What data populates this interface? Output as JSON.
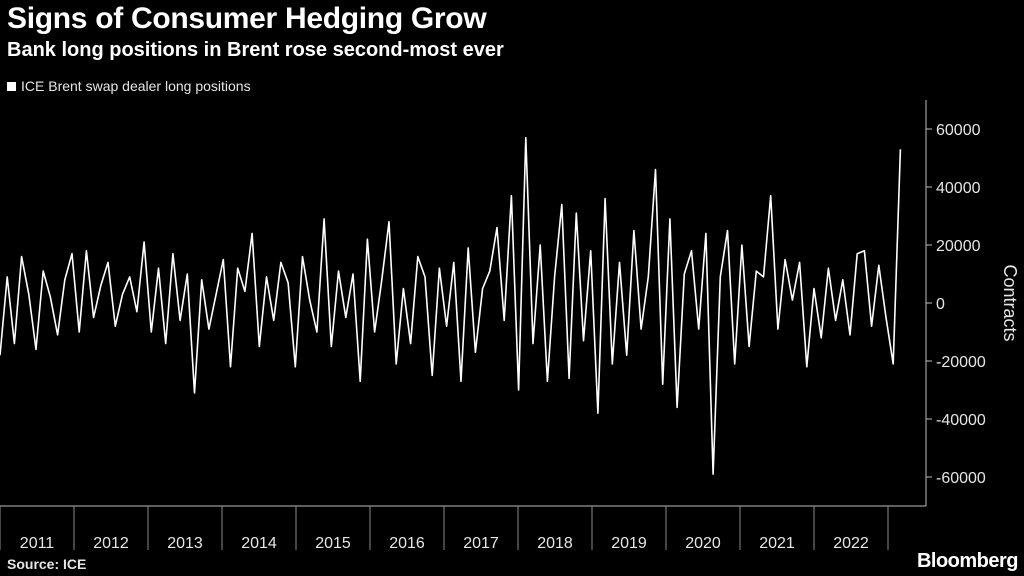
{
  "header": {
    "title": "Signs of Consumer Hedging Grow",
    "subtitle": "Bank long positions in Brent rose second-most ever"
  },
  "footer": {
    "source": "Source: ICE",
    "brand": "Bloomberg"
  },
  "chart_data": {
    "type": "line",
    "legend_position": "top-left",
    "grid": false,
    "ylabel": "Contracts",
    "ylim": [
      -70000,
      70000
    ],
    "yticks": [
      60000,
      40000,
      20000,
      0,
      -20000,
      -40000,
      -60000
    ],
    "ytick_labels": [
      "60000",
      "40000",
      "20000",
      "0",
      "-20000",
      "-40000",
      "-60000"
    ],
    "xlim": [
      2010.9,
      2023.45
    ],
    "x_categories": [
      "2011",
      "2012",
      "2013",
      "2014",
      "2015",
      "2016",
      "2017",
      "2018",
      "2019",
      "2020",
      "2021",
      "2022"
    ],
    "series": [
      {
        "name": "ICE Brent swap dealer long positions",
        "color": "#ffffff",
        "x": [
          2010.9,
          2011.0,
          2011.1,
          2011.2,
          2011.3,
          2011.4,
          2011.5,
          2011.6,
          2011.7,
          2011.8,
          2011.9,
          2012.0,
          2012.1,
          2012.2,
          2012.3,
          2012.4,
          2012.5,
          2012.6,
          2012.7,
          2012.8,
          2012.9,
          2013.0,
          2013.1,
          2013.2,
          2013.3,
          2013.4,
          2013.5,
          2013.6,
          2013.7,
          2013.8,
          2013.9,
          2014.0,
          2014.1,
          2014.2,
          2014.3,
          2014.4,
          2014.5,
          2014.6,
          2014.7,
          2014.8,
          2014.9,
          2015.0,
          2015.1,
          2015.2,
          2015.3,
          2015.4,
          2015.5,
          2015.6,
          2015.7,
          2015.8,
          2015.9,
          2016.0,
          2016.1,
          2016.2,
          2016.3,
          2016.4,
          2016.5,
          2016.6,
          2016.7,
          2016.8,
          2016.9,
          2017.0,
          2017.1,
          2017.2,
          2017.3,
          2017.4,
          2017.5,
          2017.6,
          2017.7,
          2017.8,
          2017.9,
          2018.0,
          2018.1,
          2018.2,
          2018.3,
          2018.4,
          2018.5,
          2018.6,
          2018.7,
          2018.8,
          2018.9,
          2019.0,
          2019.1,
          2019.2,
          2019.3,
          2019.4,
          2019.5,
          2019.6,
          2019.7,
          2019.8,
          2019.9,
          2020.0,
          2020.1,
          2020.2,
          2020.3,
          2020.4,
          2020.5,
          2020.6,
          2020.7,
          2020.8,
          2020.9,
          2021.0,
          2021.1,
          2021.2,
          2021.3,
          2021.4,
          2021.5,
          2021.6,
          2021.7,
          2021.8,
          2021.9,
          2022.0,
          2022.1,
          2022.2,
          2022.3,
          2022.4,
          2022.5,
          2022.6,
          2022.7,
          2022.8,
          2022.9,
          2023.0,
          2023.1,
          2023.2,
          2023.3,
          2023.4
        ],
        "y": [
          -18000,
          9000,
          -14000,
          16000,
          3000,
          -16000,
          11000,
          2000,
          -11000,
          8000,
          17000,
          -10000,
          18000,
          -5000,
          6000,
          14000,
          -8000,
          3000,
          9000,
          -3000,
          21000,
          -10000,
          12000,
          -14000,
          17000,
          -6000,
          10000,
          -31000,
          8000,
          -9000,
          3000,
          15000,
          -22000,
          12000,
          4000,
          24000,
          -15000,
          9000,
          -6000,
          14000,
          7000,
          -22000,
          16000,
          1000,
          -10000,
          29000,
          -15000,
          11000,
          -5000,
          10000,
          -27000,
          22000,
          -10000,
          8000,
          28000,
          -21000,
          5000,
          -14000,
          16000,
          9000,
          -25000,
          12000,
          -8000,
          14000,
          -27000,
          19000,
          -17000,
          5000,
          11000,
          26000,
          -6000,
          37000,
          -30000,
          57000,
          -14000,
          20000,
          -27000,
          9000,
          34000,
          -26000,
          31000,
          -13000,
          18000,
          -38000,
          36000,
          -21000,
          14000,
          -18000,
          25000,
          -9000,
          9000,
          46000,
          -28000,
          29000,
          -36000,
          10000,
          18000,
          -9000,
          24000,
          -59000,
          9000,
          25000,
          -21000,
          20000,
          -15000,
          11000,
          9000,
          37000,
          -9000,
          15000,
          1000,
          14000,
          -22000,
          5000,
          -12000,
          12000,
          -6000,
          8000,
          -11000,
          17000,
          18000,
          -8000,
          13000,
          -5000,
          -21000,
          53000
        ]
      }
    ]
  }
}
